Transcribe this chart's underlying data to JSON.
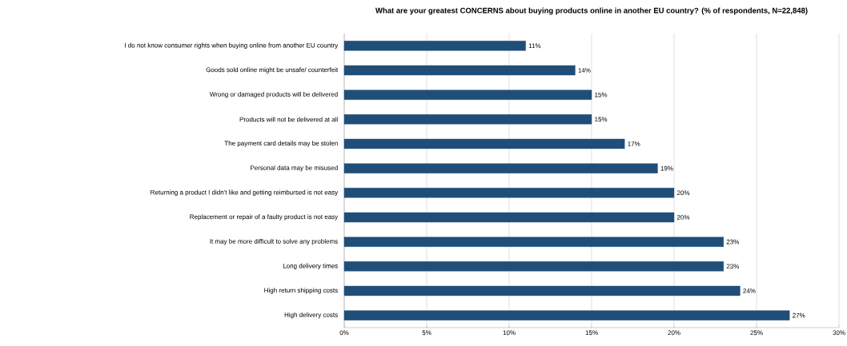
{
  "chart_data": {
    "type": "bar",
    "orientation": "horizontal",
    "title": "What are your greatest CONCERNS about buying products online in another EU country? (% of respondents, N=22,848)",
    "categories": [
      "I do not know consumer rights when buying online from another EU country",
      "Goods sold online might be unsafe/ counterfeit",
      "Wrong or damaged products will be delivered",
      "Products will not be delivered at all",
      "The payment card details may be stolen",
      "Personal data may be misused",
      "Returning a product I didn't like and getting reimbursed is not easy",
      "Replacement or repair of a faulty product is not easy",
      "It may be more difficult to solve any problems",
      "Long delivery times",
      "High return shipping costs",
      "High delivery costs"
    ],
    "values": [
      11,
      14,
      15,
      15,
      17,
      19,
      20,
      20,
      23,
      23,
      24,
      27
    ],
    "value_labels": [
      "11%",
      "14%",
      "15%",
      "15%",
      "17%",
      "19%",
      "20%",
      "20%",
      "23%",
      "23%",
      "24%",
      "27%"
    ],
    "color": "#1f4e79",
    "xlim": [
      0,
      30
    ],
    "xticks": [
      {
        "value": 0,
        "label": "0%"
      },
      {
        "value": 5,
        "label": "5%"
      },
      {
        "value": 10,
        "label": "10%"
      },
      {
        "value": 15,
        "label": "15%"
      },
      {
        "value": 20,
        "label": "20%"
      },
      {
        "value": 25,
        "label": "25%"
      },
      {
        "value": 30,
        "label": "30%"
      }
    ],
    "grid": "x"
  }
}
